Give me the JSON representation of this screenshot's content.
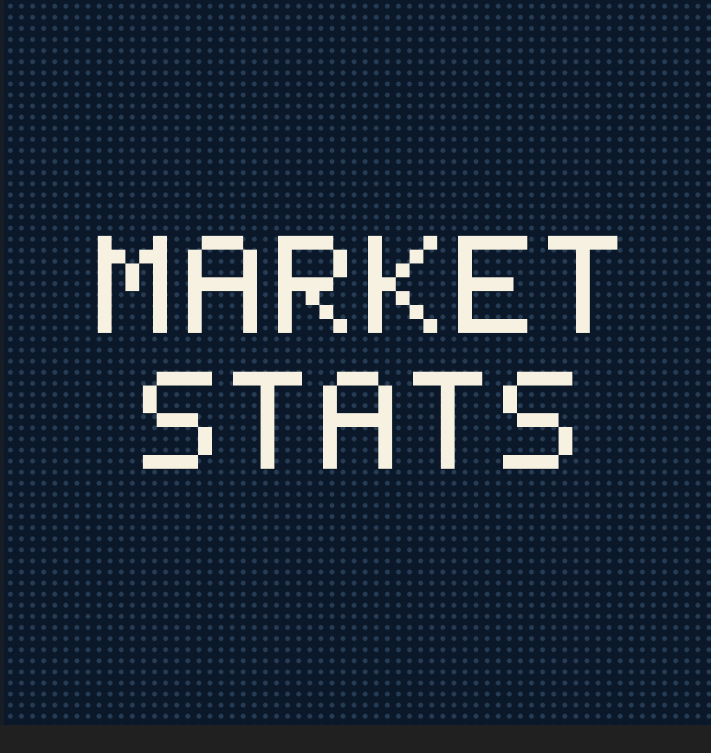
{
  "screen": {
    "title_lines": [
      "MARKET",
      "STATS"
    ],
    "colors": {
      "background": "#0b1829",
      "dot_pattern": "#2a425c",
      "title_text": "#f6f1e1",
      "frame": "#202020"
    }
  }
}
